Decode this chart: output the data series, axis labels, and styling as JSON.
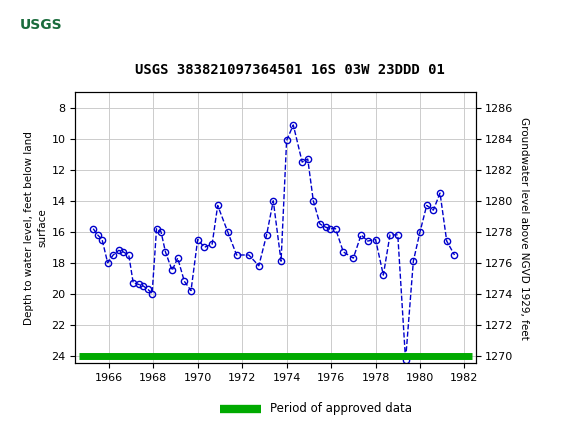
{
  "title": "USGS 383821097364501 16S 03W 23DDD 01",
  "ylabel_left": "Depth to water level, feet below land\nsurface",
  "ylabel_right": "Groundwater level above NGVD 1929, feet",
  "header_color": "#1a6b3c",
  "line_color": "#0000cc",
  "marker_color": "#0000cc",
  "background_color": "#ffffff",
  "grid_color": "#cccccc",
  "ylim_left": [
    24.5,
    7.0
  ],
  "ylim_right": [
    1269.5,
    1287.0
  ],
  "xlim": [
    1964.5,
    1982.5
  ],
  "xticks": [
    1966,
    1968,
    1970,
    1972,
    1974,
    1976,
    1978,
    1980,
    1982
  ],
  "yticks_left": [
    8,
    10,
    12,
    14,
    16,
    18,
    20,
    22,
    24
  ],
  "yticks_right": [
    1270,
    1272,
    1274,
    1276,
    1278,
    1280,
    1282,
    1284,
    1286
  ],
  "legend_label": "Period of approved data",
  "legend_color": "#00aa00",
  "years": [
    1965.3,
    1965.5,
    1965.7,
    1965.95,
    1966.2,
    1966.45,
    1966.65,
    1966.9,
    1967.1,
    1967.35,
    1967.55,
    1967.75,
    1967.95,
    1968.15,
    1968.35,
    1968.55,
    1968.85,
    1969.1,
    1969.4,
    1969.7,
    1970.0,
    1970.3,
    1970.65,
    1970.9,
    1971.35,
    1971.75,
    1972.3,
    1972.75,
    1973.1,
    1973.4,
    1973.75,
    1974.0,
    1974.3,
    1974.7,
    1974.95,
    1975.2,
    1975.5,
    1975.75,
    1975.95,
    1976.2,
    1976.55,
    1977.0,
    1977.35,
    1977.65,
    1978.0,
    1978.35,
    1978.65,
    1979.0,
    1979.35,
    1979.7,
    1980.0,
    1980.3,
    1980.6,
    1980.9,
    1981.2,
    1981.55
  ],
  "depths": [
    15.8,
    16.2,
    16.5,
    18.0,
    17.5,
    17.2,
    17.3,
    17.5,
    19.3,
    19.4,
    19.5,
    19.7,
    20.0,
    15.8,
    16.0,
    17.3,
    18.5,
    17.7,
    19.2,
    19.8,
    16.5,
    17.0,
    16.8,
    14.3,
    16.0,
    17.5,
    17.5,
    18.2,
    16.2,
    14.0,
    17.9,
    10.1,
    9.1,
    11.5,
    11.3,
    14.0,
    15.5,
    15.7,
    15.8,
    15.8,
    17.3,
    17.7,
    16.2,
    16.6,
    16.5,
    18.8,
    16.2,
    16.2,
    24.3,
    17.9,
    16.0,
    14.3,
    14.6,
    13.5,
    16.6,
    17.5
  ]
}
